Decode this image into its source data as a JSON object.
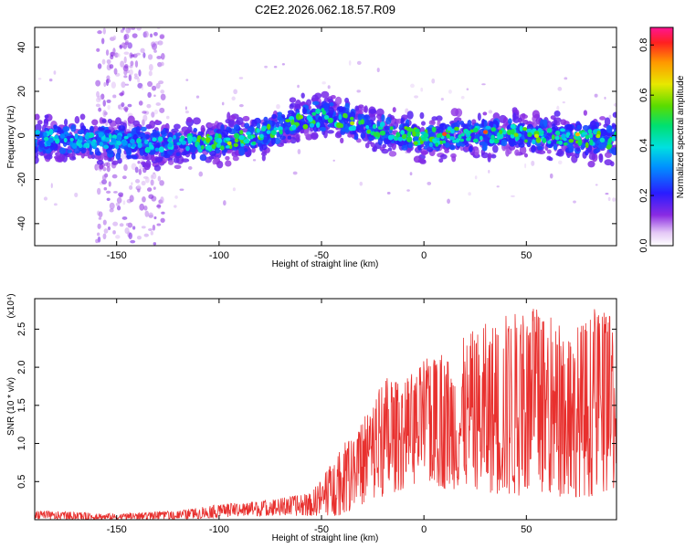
{
  "title": "C2E2.2026.062.18.57.R09",
  "chart_data": [
    {
      "type": "heatmap",
      "name": "spectrogram",
      "xlabel": "Height of straight line (km)",
      "ylabel": "Frequency (Hz)",
      "xlim": [
        -190,
        94
      ],
      "ylim": [
        -50,
        49
      ],
      "xticks": [
        -150,
        -100,
        -50,
        0,
        50
      ],
      "yticks": [
        -40,
        -20,
        0,
        20,
        40
      ],
      "ridge_center_hz": [
        {
          "x": -190,
          "y": -1
        },
        {
          "x": -150,
          "y": -3
        },
        {
          "x": -120,
          "y": -4
        },
        {
          "x": -100,
          "y": -3
        },
        {
          "x": -80,
          "y": 0
        },
        {
          "x": -70,
          "y": 4
        },
        {
          "x": -60,
          "y": 7
        },
        {
          "x": -45,
          "y": 9
        },
        {
          "x": -35,
          "y": 6
        },
        {
          "x": -20,
          "y": 2
        },
        {
          "x": 0,
          "y": -1
        },
        {
          "x": 20,
          "y": 0
        },
        {
          "x": 40,
          "y": 1
        },
        {
          "x": 60,
          "y": 0
        },
        {
          "x": 94,
          "y": -2
        }
      ],
      "colorbar": {
        "label": "Normalized spectral amplitude",
        "range": [
          0.0,
          0.87
        ],
        "ticks": [
          0.0,
          0.2,
          0.4,
          0.6,
          0.8
        ]
      }
    },
    {
      "type": "line",
      "name": "snr",
      "xlabel": "Height of straight line (km)",
      "ylabel": "SNR (10 * v/v)",
      "y_scale_label": "(x10⁴)",
      "xlim": [
        -190,
        94
      ],
      "ylim": [
        0,
        2.9
      ],
      "xticks": [
        -150,
        -100,
        -50,
        0,
        50
      ],
      "yticks": [
        0.5,
        1.0,
        1.5,
        2.0,
        2.5
      ],
      "color": "#e8302e",
      "envelope": [
        {
          "x": -190,
          "low": 0.0,
          "high": 0.12
        },
        {
          "x": -150,
          "low": 0.0,
          "high": 0.08
        },
        {
          "x": -120,
          "low": 0.0,
          "high": 0.12
        },
        {
          "x": -100,
          "low": 0.03,
          "high": 0.2
        },
        {
          "x": -80,
          "low": 0.05,
          "high": 0.25
        },
        {
          "x": -55,
          "low": 0.05,
          "high": 0.35
        },
        {
          "x": -42,
          "low": 0.05,
          "high": 0.9
        },
        {
          "x": -30,
          "low": 0.2,
          "high": 1.3
        },
        {
          "x": -20,
          "low": 0.3,
          "high": 1.9
        },
        {
          "x": -10,
          "low": 0.4,
          "high": 1.8
        },
        {
          "x": 0,
          "low": 0.5,
          "high": 2.1
        },
        {
          "x": 10,
          "low": 0.4,
          "high": 2.2
        },
        {
          "x": 25,
          "low": 0.4,
          "high": 2.5
        },
        {
          "x": 40,
          "low": 0.3,
          "high": 2.75
        },
        {
          "x": 55,
          "low": 0.3,
          "high": 2.8
        },
        {
          "x": 70,
          "low": 0.3,
          "high": 2.5
        },
        {
          "x": 85,
          "low": 0.3,
          "high": 2.8
        },
        {
          "x": 94,
          "low": 0.4,
          "high": 2.6
        }
      ]
    }
  ]
}
